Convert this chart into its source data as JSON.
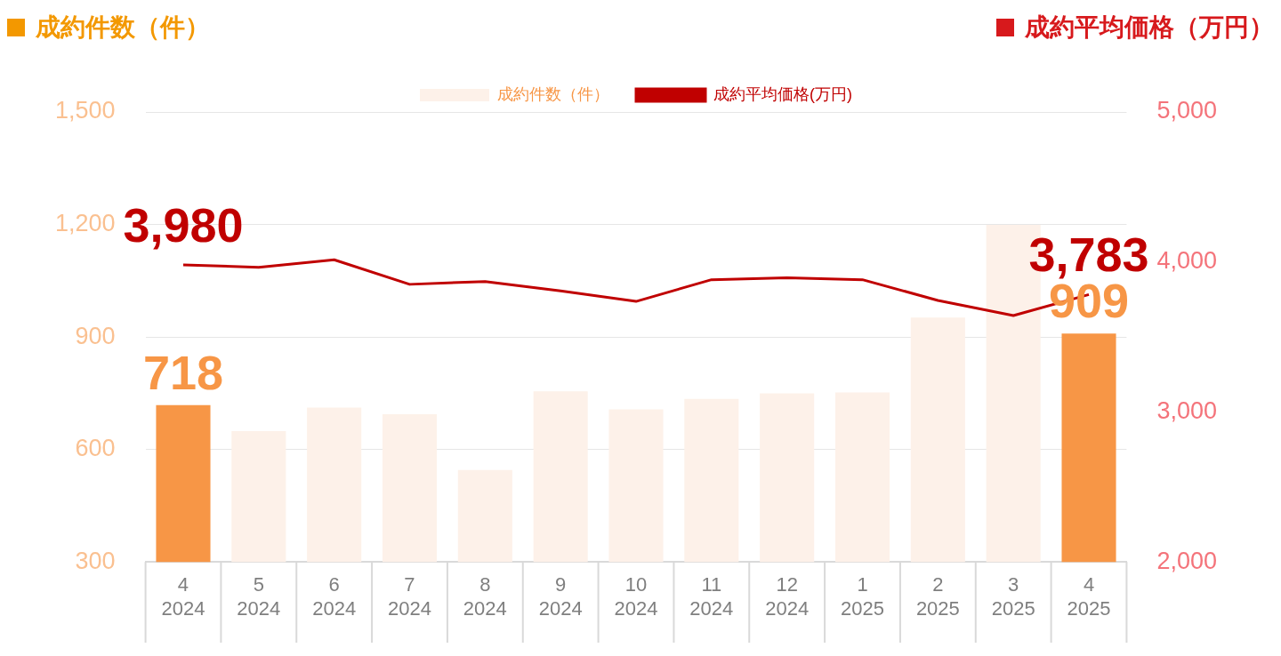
{
  "chart_data": {
    "type": "bar",
    "ylabel": "成約件数（件）",
    "y2label": "成約平均価格（万円）",
    "categories": [
      "4\n2024",
      "5\n2024",
      "6\n2024",
      "7\n2024",
      "8\n2024",
      "9\n2024",
      "10\n2024",
      "11\n2024",
      "12\n2024",
      "1\n2025",
      "2\n2025",
      "3\n2025",
      "4\n2025"
    ],
    "series": [
      {
        "name": "成約件数（件）",
        "color": "#fdf1e9",
        "colors": [
          "#f79646",
          "#fdf1e9",
          "#fdf1e9",
          "#fdf1e9",
          "#fdf1e9",
          "#fdf1e9",
          "#fdf1e9",
          "#fdf1e9",
          "#fdf1e9",
          "#fdf1e9",
          "#fdf1e9",
          "#fdf1e9",
          "#f79646"
        ],
        "values": [
          718,
          649,
          712,
          694,
          545,
          755,
          707,
          735,
          750,
          752,
          952,
          1199,
          909
        ],
        "value_labels": [
          "718",
          null,
          null,
          null,
          null,
          null,
          null,
          null,
          null,
          null,
          null,
          null,
          "909"
        ]
      },
      {
        "name": "成約平均価格(万円)",
        "type": "line",
        "axis": "y2",
        "color": "#c00000",
        "values": [
          3980,
          3965,
          4015,
          3851,
          3870,
          3807,
          3737,
          3882,
          3895,
          3882,
          3744,
          3643,
          3783
        ],
        "value_labels": [
          "3,980",
          null,
          null,
          null,
          null,
          null,
          null,
          null,
          null,
          null,
          null,
          null,
          "3,783"
        ]
      }
    ],
    "ylim": [
      300,
      1500
    ],
    "yticks": [
      300,
      600,
      900,
      {
        "value": 1200,
        "label": "1,200"
      },
      {
        "value": 1500,
        "label": "1,500"
      }
    ],
    "y2lim": [
      2000,
      5000
    ],
    "y2ticks": [
      {
        "value": 2000,
        "label": "2,000"
      },
      {
        "value": 3000,
        "label": "3,000"
      },
      {
        "value": 4000,
        "label": "4,000"
      },
      {
        "value": 5000,
        "label": "5,000"
      }
    ],
    "grid": "y",
    "legend": "top",
    "marker": "none"
  }
}
